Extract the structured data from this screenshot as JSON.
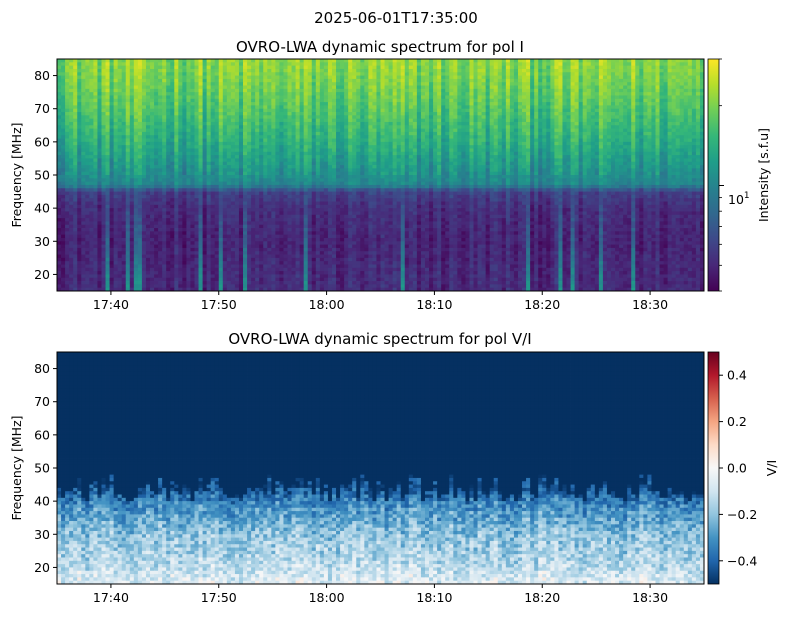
{
  "suptitle": "2025-06-01T17:35:00",
  "colors": {
    "viridis": [
      "#440154",
      "#482878",
      "#3e4989",
      "#31688e",
      "#26828e",
      "#1f9e89",
      "#35b779",
      "#6ece58",
      "#b5de2b",
      "#fde725"
    ],
    "rdbu_r": [
      "#053061",
      "#2166ac",
      "#4393c3",
      "#92c5de",
      "#d1e5f0",
      "#f7f7f7",
      "#fddbc7",
      "#f4a582",
      "#d6604d",
      "#b2182b",
      "#67001f"
    ]
  },
  "chart_data": [
    {
      "type": "heatmap",
      "title": "OVRO-LWA dynamic spectrum for pol I",
      "xlabel": "",
      "ylabel": "Frequency [MHz]",
      "x_range": [
        "17:35",
        "18:35"
      ],
      "xticks": [
        "17:40",
        "17:50",
        "18:00",
        "18:10",
        "18:20",
        "18:30"
      ],
      "ylim": [
        15,
        85
      ],
      "yticks": [
        20,
        30,
        40,
        50,
        60,
        70,
        80
      ],
      "colormap": "viridis",
      "colorbar": {
        "label": "Intensity [s.f.u]",
        "scale": "log",
        "range": [
          4,
          30
        ],
        "major_tick": {
          "value": 10,
          "base": "10",
          "exponent": "1"
        }
      },
      "freq_profile": [
        [
          15,
          0.12
        ],
        [
          20,
          0.12
        ],
        [
          30,
          0.1
        ],
        [
          40,
          0.13
        ],
        [
          45,
          0.2
        ],
        [
          47,
          0.45
        ],
        [
          52,
          0.52
        ],
        [
          60,
          0.62
        ],
        [
          70,
          0.72
        ],
        [
          80,
          0.8
        ],
        [
          85,
          0.82
        ]
      ]
    },
    {
      "type": "heatmap",
      "title": "OVRO-LWA dynamic spectrum for pol V/I",
      "xlabel": "",
      "ylabel": "Frequency [MHz]",
      "x_range": [
        "17:35",
        "18:35"
      ],
      "xticks": [
        "17:40",
        "17:50",
        "18:00",
        "18:10",
        "18:20",
        "18:30"
      ],
      "ylim": [
        15,
        85
      ],
      "yticks": [
        20,
        30,
        40,
        50,
        60,
        70,
        80
      ],
      "colormap": "RdBu_r",
      "colorbar": {
        "label": "V/I",
        "scale": "linear",
        "range": [
          -0.5,
          0.5
        ],
        "ticks": [
          "0.4",
          "0.2",
          "0.0",
          "−0.2",
          "−0.4"
        ],
        "tick_values": [
          0.4,
          0.2,
          0.0,
          -0.2,
          -0.4
        ]
      },
      "freq_profile": [
        [
          15,
          -0.05
        ],
        [
          20,
          -0.12
        ],
        [
          30,
          -0.2
        ],
        [
          38,
          -0.3
        ],
        [
          44,
          -0.44
        ],
        [
          48,
          -0.5
        ],
        [
          85,
          -0.5
        ]
      ]
    }
  ]
}
